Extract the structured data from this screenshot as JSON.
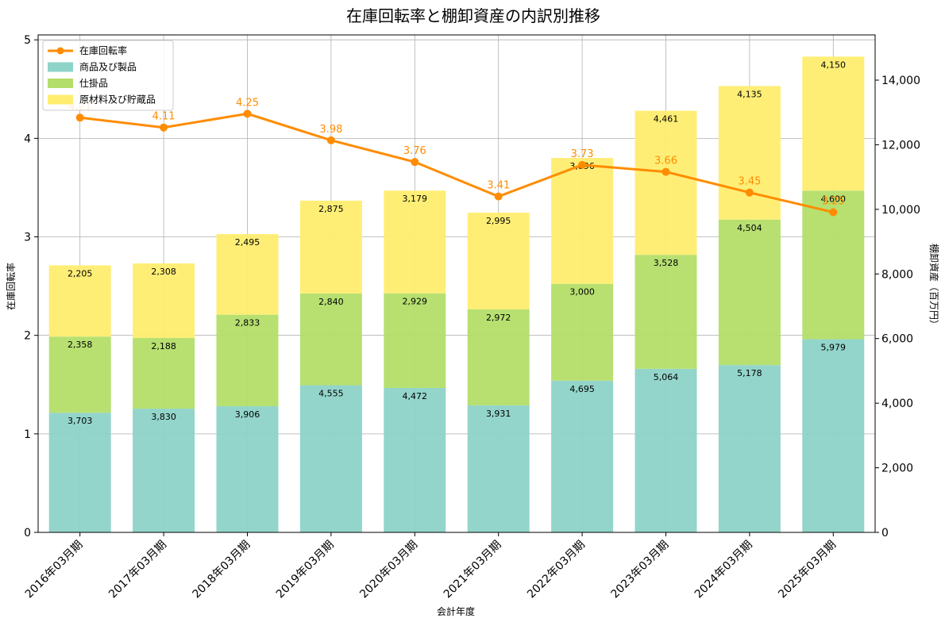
{
  "chart_data": {
    "type": "bar",
    "title": "在庫回転率と棚卸資産の内訳別推移",
    "xlabel": "会計年度",
    "ylabel_left": "在庫回転率",
    "ylabel_right": "棚卸資産（百万円）",
    "categories": [
      "2016年03月期",
      "2017年03月期",
      "2018年03月期",
      "2019年03月期",
      "2020年03月期",
      "2021年03月期",
      "2022年03月期",
      "2023年03月期",
      "2024年03月期",
      "2025年03月期"
    ],
    "ylim_left": [
      0,
      5.05
    ],
    "yticks_left": [
      0,
      1,
      2,
      3,
      4,
      5
    ],
    "ylim_right": [
      0,
      15400
    ],
    "yticks_right": [
      0,
      2000,
      4000,
      6000,
      8000,
      10000,
      12000,
      14000
    ],
    "grid": true,
    "legend_position": "upper-left",
    "series": [
      {
        "name": "商品及び製品",
        "kind": "stacked-bar",
        "axis": "right",
        "color": "#8dd3c7",
        "values": [
          3703,
          3830,
          3906,
          4555,
          4472,
          3931,
          4695,
          5064,
          5178,
          5979
        ]
      },
      {
        "name": "仕掛品",
        "kind": "stacked-bar",
        "axis": "right",
        "color": "#b3de69",
        "values": [
          2358,
          2188,
          2833,
          2840,
          2929,
          2972,
          3000,
          3528,
          4504,
          4600
        ]
      },
      {
        "name": "原材料及び貯蔵品",
        "kind": "stacked-bar",
        "axis": "right",
        "color": "#ffed6f",
        "values": [
          2205,
          2308,
          2495,
          2875,
          3179,
          2995,
          3896,
          4461,
          4135,
          4150
        ]
      },
      {
        "name": "在庫回転率",
        "kind": "line",
        "axis": "left",
        "color": "#ff8c00",
        "values": [
          4.21,
          4.11,
          4.25,
          3.98,
          3.76,
          3.41,
          3.73,
          3.66,
          3.45,
          3.25
        ]
      }
    ]
  }
}
